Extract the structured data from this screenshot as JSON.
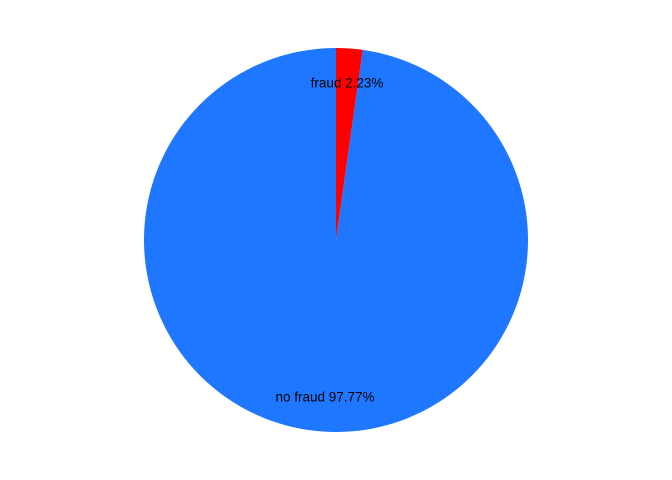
{
  "chart_data": {
    "type": "pie",
    "title": "",
    "slices": [
      {
        "label": "fraud 2.23%",
        "value": 2.23,
        "color": "#ff0000"
      },
      {
        "label": "no fraud 97.77%",
        "value": 97.77,
        "color": "#1f77ff"
      }
    ],
    "start_angle": "top",
    "direction": "clockwise",
    "legend": "none"
  }
}
